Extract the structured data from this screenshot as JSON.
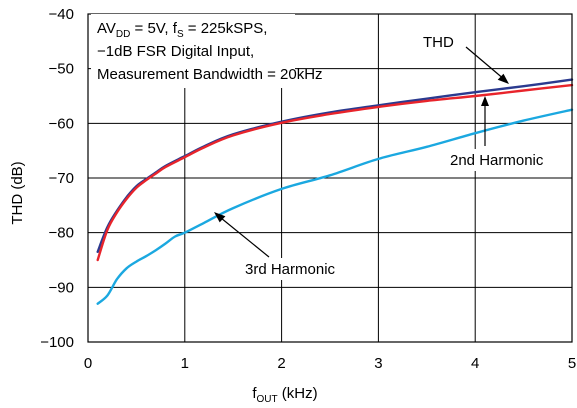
{
  "chart_data": {
    "type": "line",
    "xlabel": {
      "main": "f",
      "sub": "OUT",
      "tail": " (kHz)"
    },
    "ylabel": "THD (dB)",
    "xlim": [
      0,
      5
    ],
    "ylim": [
      -100,
      -40
    ],
    "xticks": [
      0,
      1,
      2,
      3,
      4,
      5
    ],
    "yticks": [
      -40,
      -50,
      -60,
      -70,
      -80,
      -90,
      -100
    ],
    "xtick_labels": [
      "0",
      "1",
      "2",
      "3",
      "4",
      "5"
    ],
    "ytick_labels": [
      "−40",
      "−50",
      "−60",
      "−70",
      "−80",
      "−90",
      "−100"
    ],
    "grid": true,
    "conditions": {
      "line1": {
        "a": "AV",
        "a_sub": "DD",
        "b": " = 5V, f",
        "b_sub": "S",
        "c": " = 225kSPS,"
      },
      "line2": "−1dB FSR Digital Input,",
      "line3": "Measurement Bandwidth = 20kHz"
    },
    "series": [
      {
        "name": "THD",
        "color": "#2b3a8f",
        "x": [
          0.1,
          0.2,
          0.3,
          0.4,
          0.5,
          0.6,
          0.7,
          0.8,
          1.0,
          1.2,
          1.5,
          2.0,
          2.5,
          3.0,
          3.5,
          4.0,
          4.5,
          5.0
        ],
        "y": [
          -83.5,
          -79.0,
          -76.0,
          -73.5,
          -71.5,
          -70.2,
          -69.0,
          -67.8,
          -66.0,
          -64.2,
          -62.0,
          -59.7,
          -58.0,
          -56.7,
          -55.5,
          -54.3,
          -53.2,
          -52.0
        ]
      },
      {
        "name": "2nd Harmonic",
        "color": "#e8242b",
        "x": [
          0.1,
          0.2,
          0.3,
          0.4,
          0.5,
          0.6,
          0.7,
          0.8,
          1.0,
          1.2,
          1.5,
          2.0,
          2.5,
          3.0,
          3.5,
          4.0,
          4.5,
          5.0
        ],
        "y": [
          -85.0,
          -79.5,
          -76.3,
          -73.8,
          -71.8,
          -70.4,
          -69.2,
          -68.0,
          -66.2,
          -64.4,
          -62.2,
          -59.9,
          -58.3,
          -57.0,
          -55.9,
          -55.0,
          -54.0,
          -53.0
        ]
      },
      {
        "name": "3rd Harmonic",
        "color": "#1ba8e0",
        "x": [
          0.1,
          0.2,
          0.3,
          0.4,
          0.5,
          0.6,
          0.7,
          0.8,
          0.9,
          1.0,
          1.2,
          1.5,
          2.0,
          2.5,
          3.0,
          3.5,
          4.0,
          4.5,
          5.0
        ],
        "y": [
          -93.0,
          -91.5,
          -88.5,
          -86.5,
          -85.3,
          -84.3,
          -83.2,
          -82.0,
          -80.7,
          -80.0,
          -78.2,
          -75.5,
          -72.0,
          -69.5,
          -66.5,
          -64.3,
          -61.8,
          -59.5,
          -57.5
        ]
      }
    ],
    "callouts": [
      {
        "text": "THD",
        "series": 0
      },
      {
        "text": "2nd Harmonic",
        "series": 1
      },
      {
        "text": "3rd Harmonic",
        "series": 2
      }
    ]
  }
}
